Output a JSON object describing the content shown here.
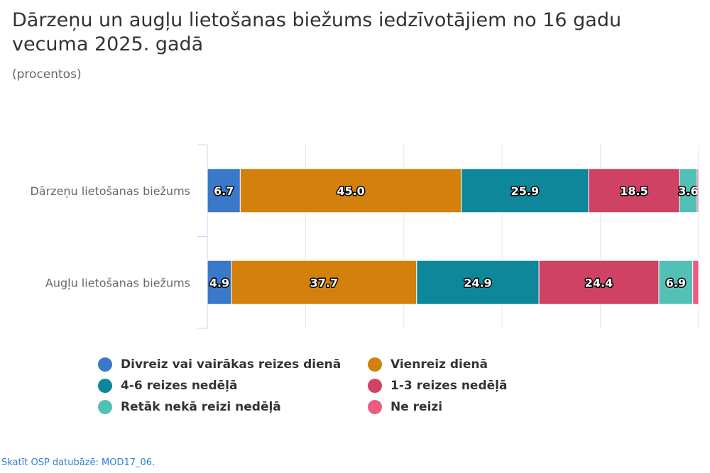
{
  "title": "Dārzeņu un augļu lietošanas biežums iedzīvotājiem no 16 gadu vecuma 2025. gadā",
  "subtitle": "(procentos)",
  "source_link": "Skatīt OSP datubāzē: MOD17_06.",
  "chart_data": {
    "type": "bar",
    "orientation": "horizontal",
    "stacked": "percent",
    "title": "Dārzeņu un augļu lietošanas biežums iedzīvotājiem no 16 gadu vecuma 2025. gadā",
    "subtitle": "(procentos)",
    "categories": [
      "Dārzeņu lietošanas biežums",
      "Augļu lietošanas biežums"
    ],
    "xlim": [
      0,
      100
    ],
    "grid": true,
    "legend_position": "bottom",
    "series": [
      {
        "name": "Divreiz vai vairākas reizes dienā",
        "color": "#3a78c9",
        "values": [
          6.7,
          4.9
        ],
        "labels": [
          "6.7",
          "4.9"
        ]
      },
      {
        "name": "Vienreiz dienā",
        "color": "#d4800c",
        "values": [
          45.0,
          37.7
        ],
        "labels": [
          "45.0",
          "37.7"
        ]
      },
      {
        "name": "4-6 reizes nedēļā",
        "color": "#0e879b",
        "values": [
          25.9,
          24.9
        ],
        "labels": [
          "25.9",
          "24.9"
        ]
      },
      {
        "name": "1-3 reizes nedēļā",
        "color": "#cf4264",
        "values": [
          18.5,
          24.4
        ],
        "labels": [
          "18.5",
          "24.4"
        ]
      },
      {
        "name": "Retāk nekā reizi nedēļā",
        "color": "#53c0b5",
        "values": [
          3.6,
          6.9
        ],
        "labels": [
          "3.6",
          "6.9"
        ]
      },
      {
        "name": "Ne reizi",
        "color": "#ee5b81",
        "values": [
          0.3,
          1.2
        ],
        "labels": [
          "",
          ""
        ]
      }
    ]
  }
}
